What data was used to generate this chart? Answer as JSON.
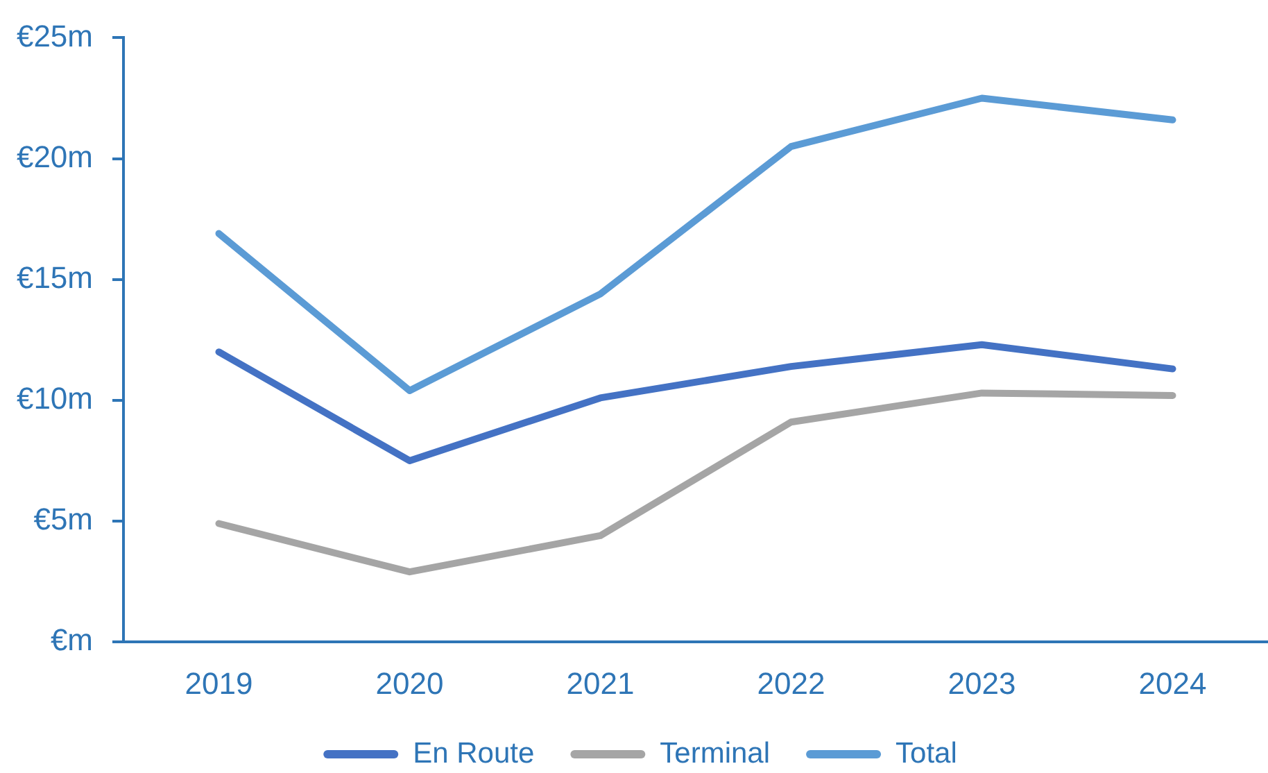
{
  "chart_data": {
    "type": "line",
    "categories": [
      "2019",
      "2020",
      "2021",
      "2022",
      "2023",
      "2024"
    ],
    "series": [
      {
        "name": "En Route",
        "color": "#4472c4",
        "values": [
          12.0,
          7.5,
          10.1,
          11.4,
          12.3,
          11.3
        ]
      },
      {
        "name": "Terminal",
        "color": "#a5a5a5",
        "values": [
          4.9,
          2.9,
          4.4,
          9.1,
          10.3,
          10.2
        ]
      },
      {
        "name": "Total",
        "color": "#5b9bd5",
        "values": [
          16.9,
          10.4,
          14.4,
          20.5,
          22.5,
          21.6
        ]
      }
    ],
    "ylim": [
      0,
      25
    ],
    "yticks": [
      {
        "value": 0,
        "label": "€m"
      },
      {
        "value": 5,
        "label": "€5m"
      },
      {
        "value": 10,
        "label": "€10m"
      },
      {
        "value": 15,
        "label": "€15m"
      },
      {
        "value": 20,
        "label": "€20m"
      },
      {
        "value": 25,
        "label": "€25m"
      }
    ],
    "legend": "bottom",
    "marker": "none",
    "line_style": "solid"
  }
}
